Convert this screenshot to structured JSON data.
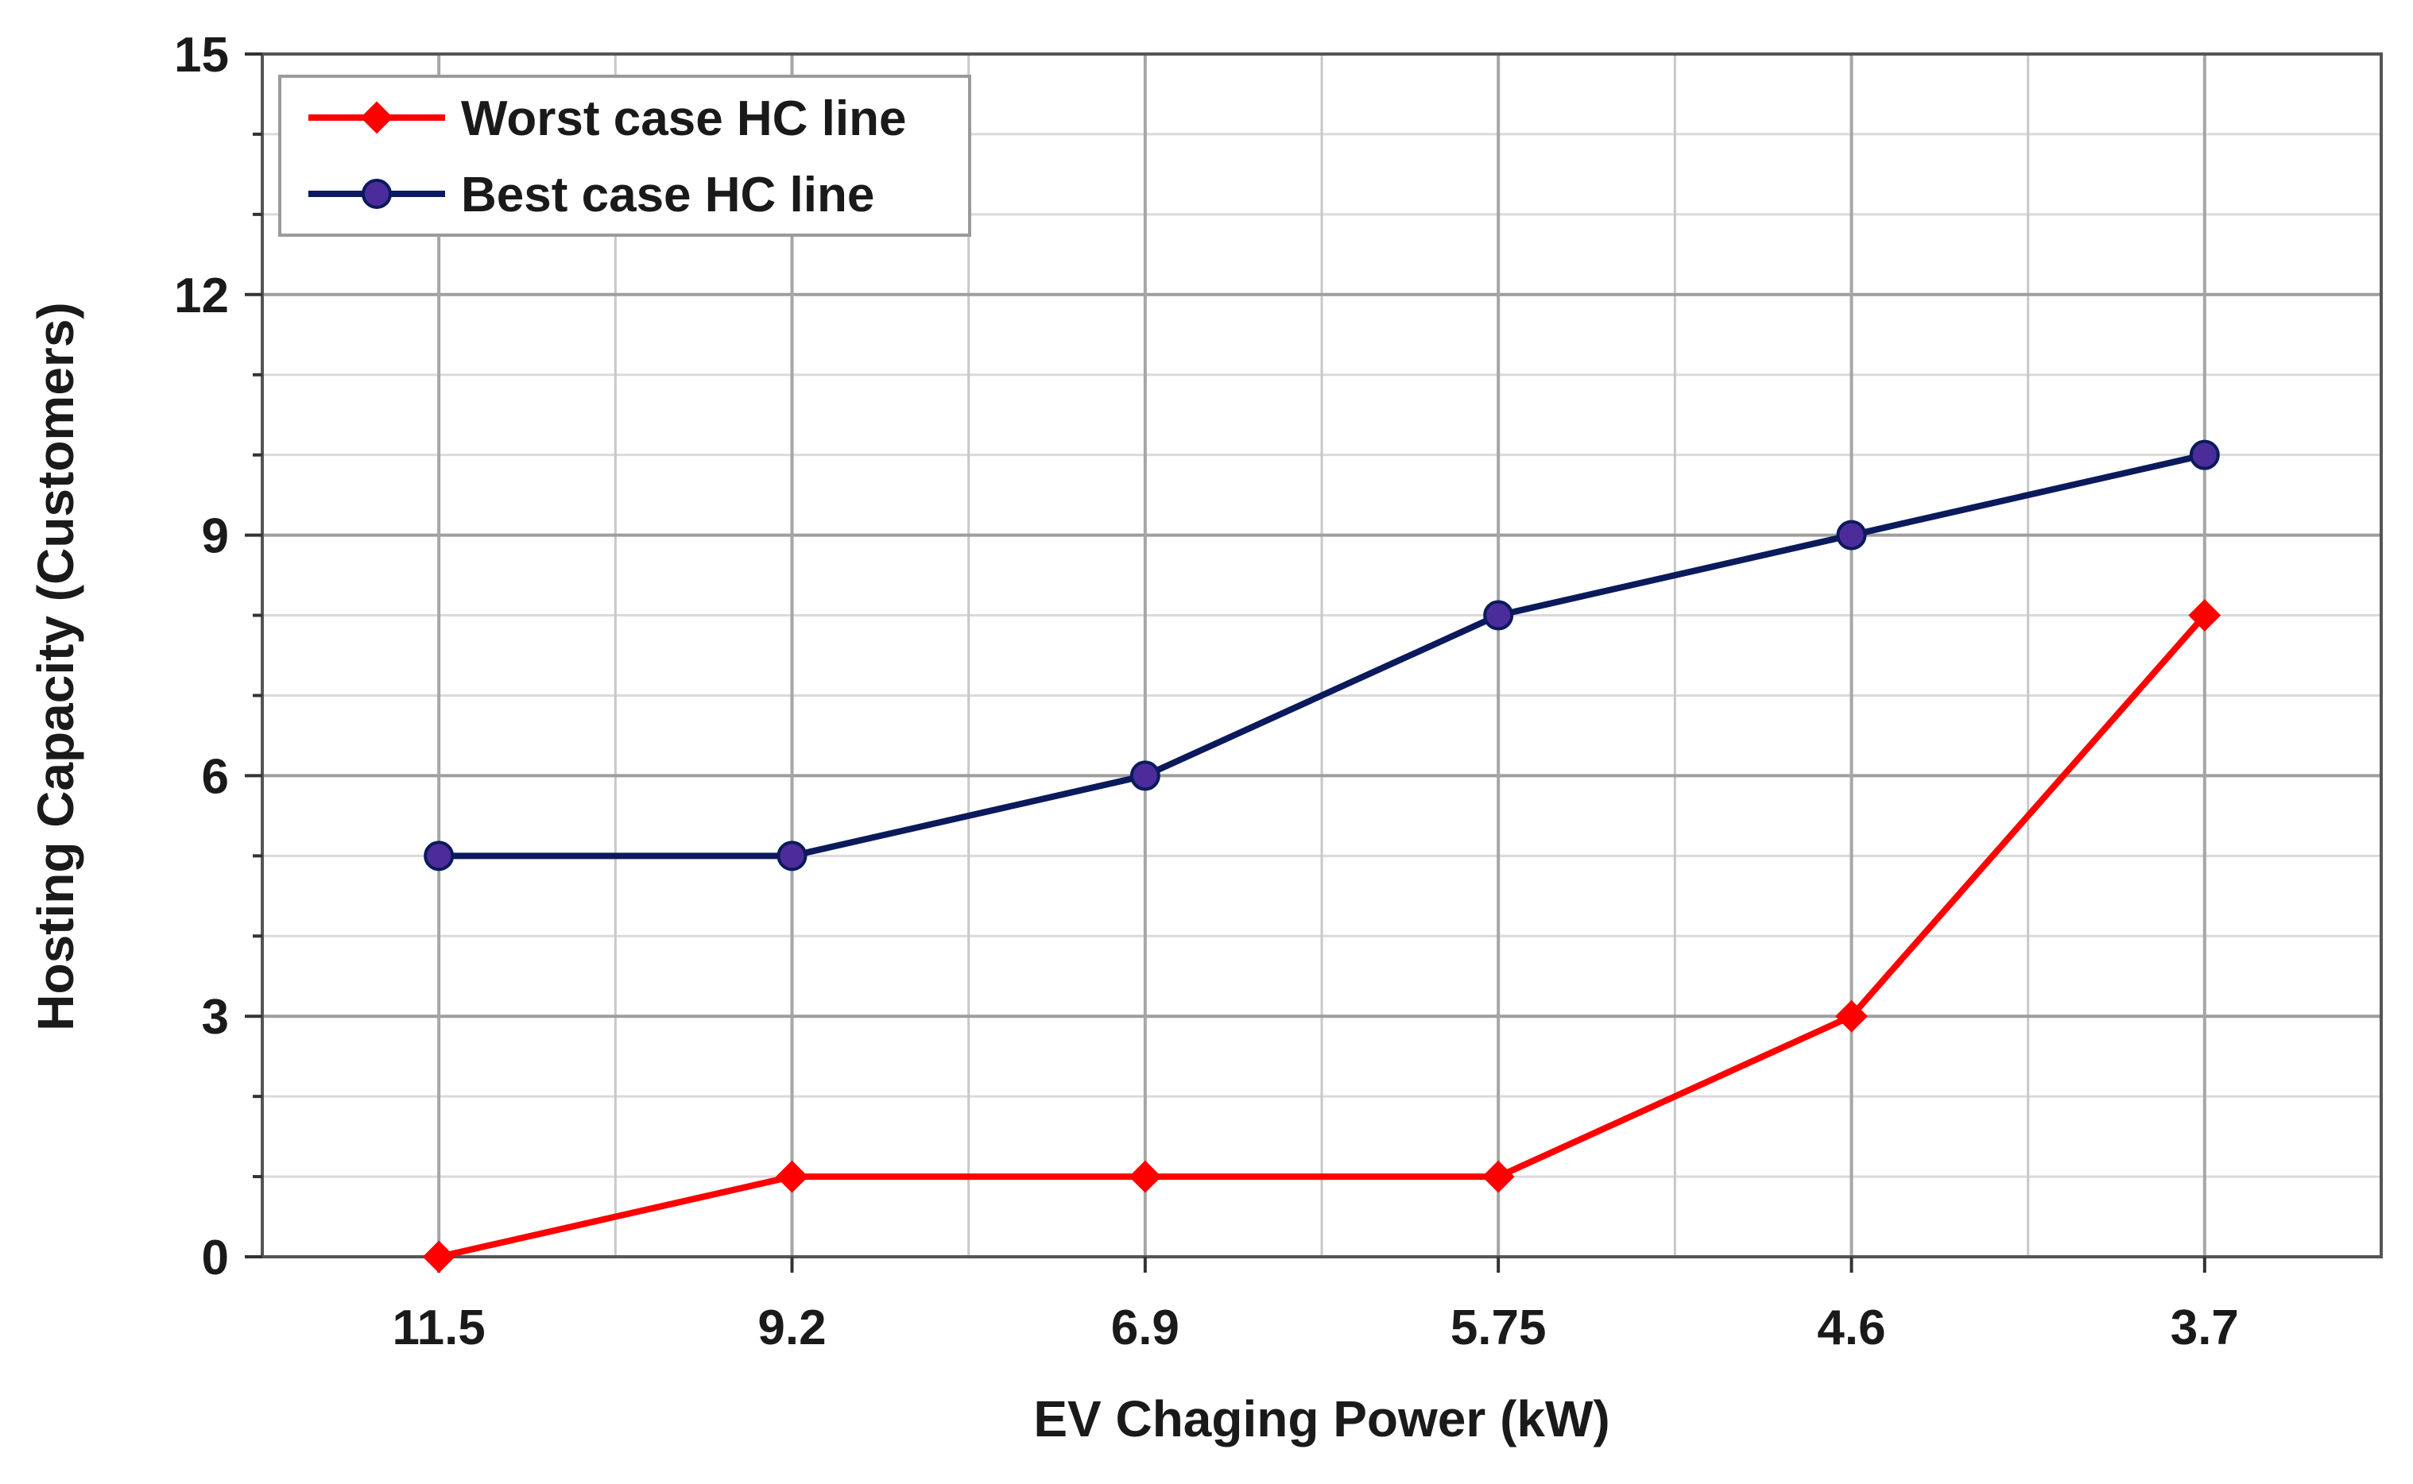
{
  "chart_data": {
    "type": "line",
    "title": "",
    "xlabel": "EV Chaging Power (kW)",
    "ylabel": "Hosting Capacity (Customers)",
    "categories": [
      "11.5",
      "9.2",
      "6.9",
      "5.75",
      "4.6",
      "3.7"
    ],
    "ylim": [
      0,
      15
    ],
    "yticks": [
      "0",
      "3",
      "6",
      "9",
      "12",
      "15"
    ],
    "grid": true,
    "legend_position": "top-left",
    "series": [
      {
        "name": "Worst case HC line",
        "color": "#ff0000",
        "marker": "diamond",
        "values": [
          0,
          1,
          1,
          1,
          3,
          8
        ]
      },
      {
        "name": "Best case HC line",
        "color": "#0b1a5c",
        "marker_color": "#4b2c9a",
        "marker": "circle",
        "values": [
          5,
          5,
          6,
          8,
          9,
          10
        ]
      }
    ]
  }
}
